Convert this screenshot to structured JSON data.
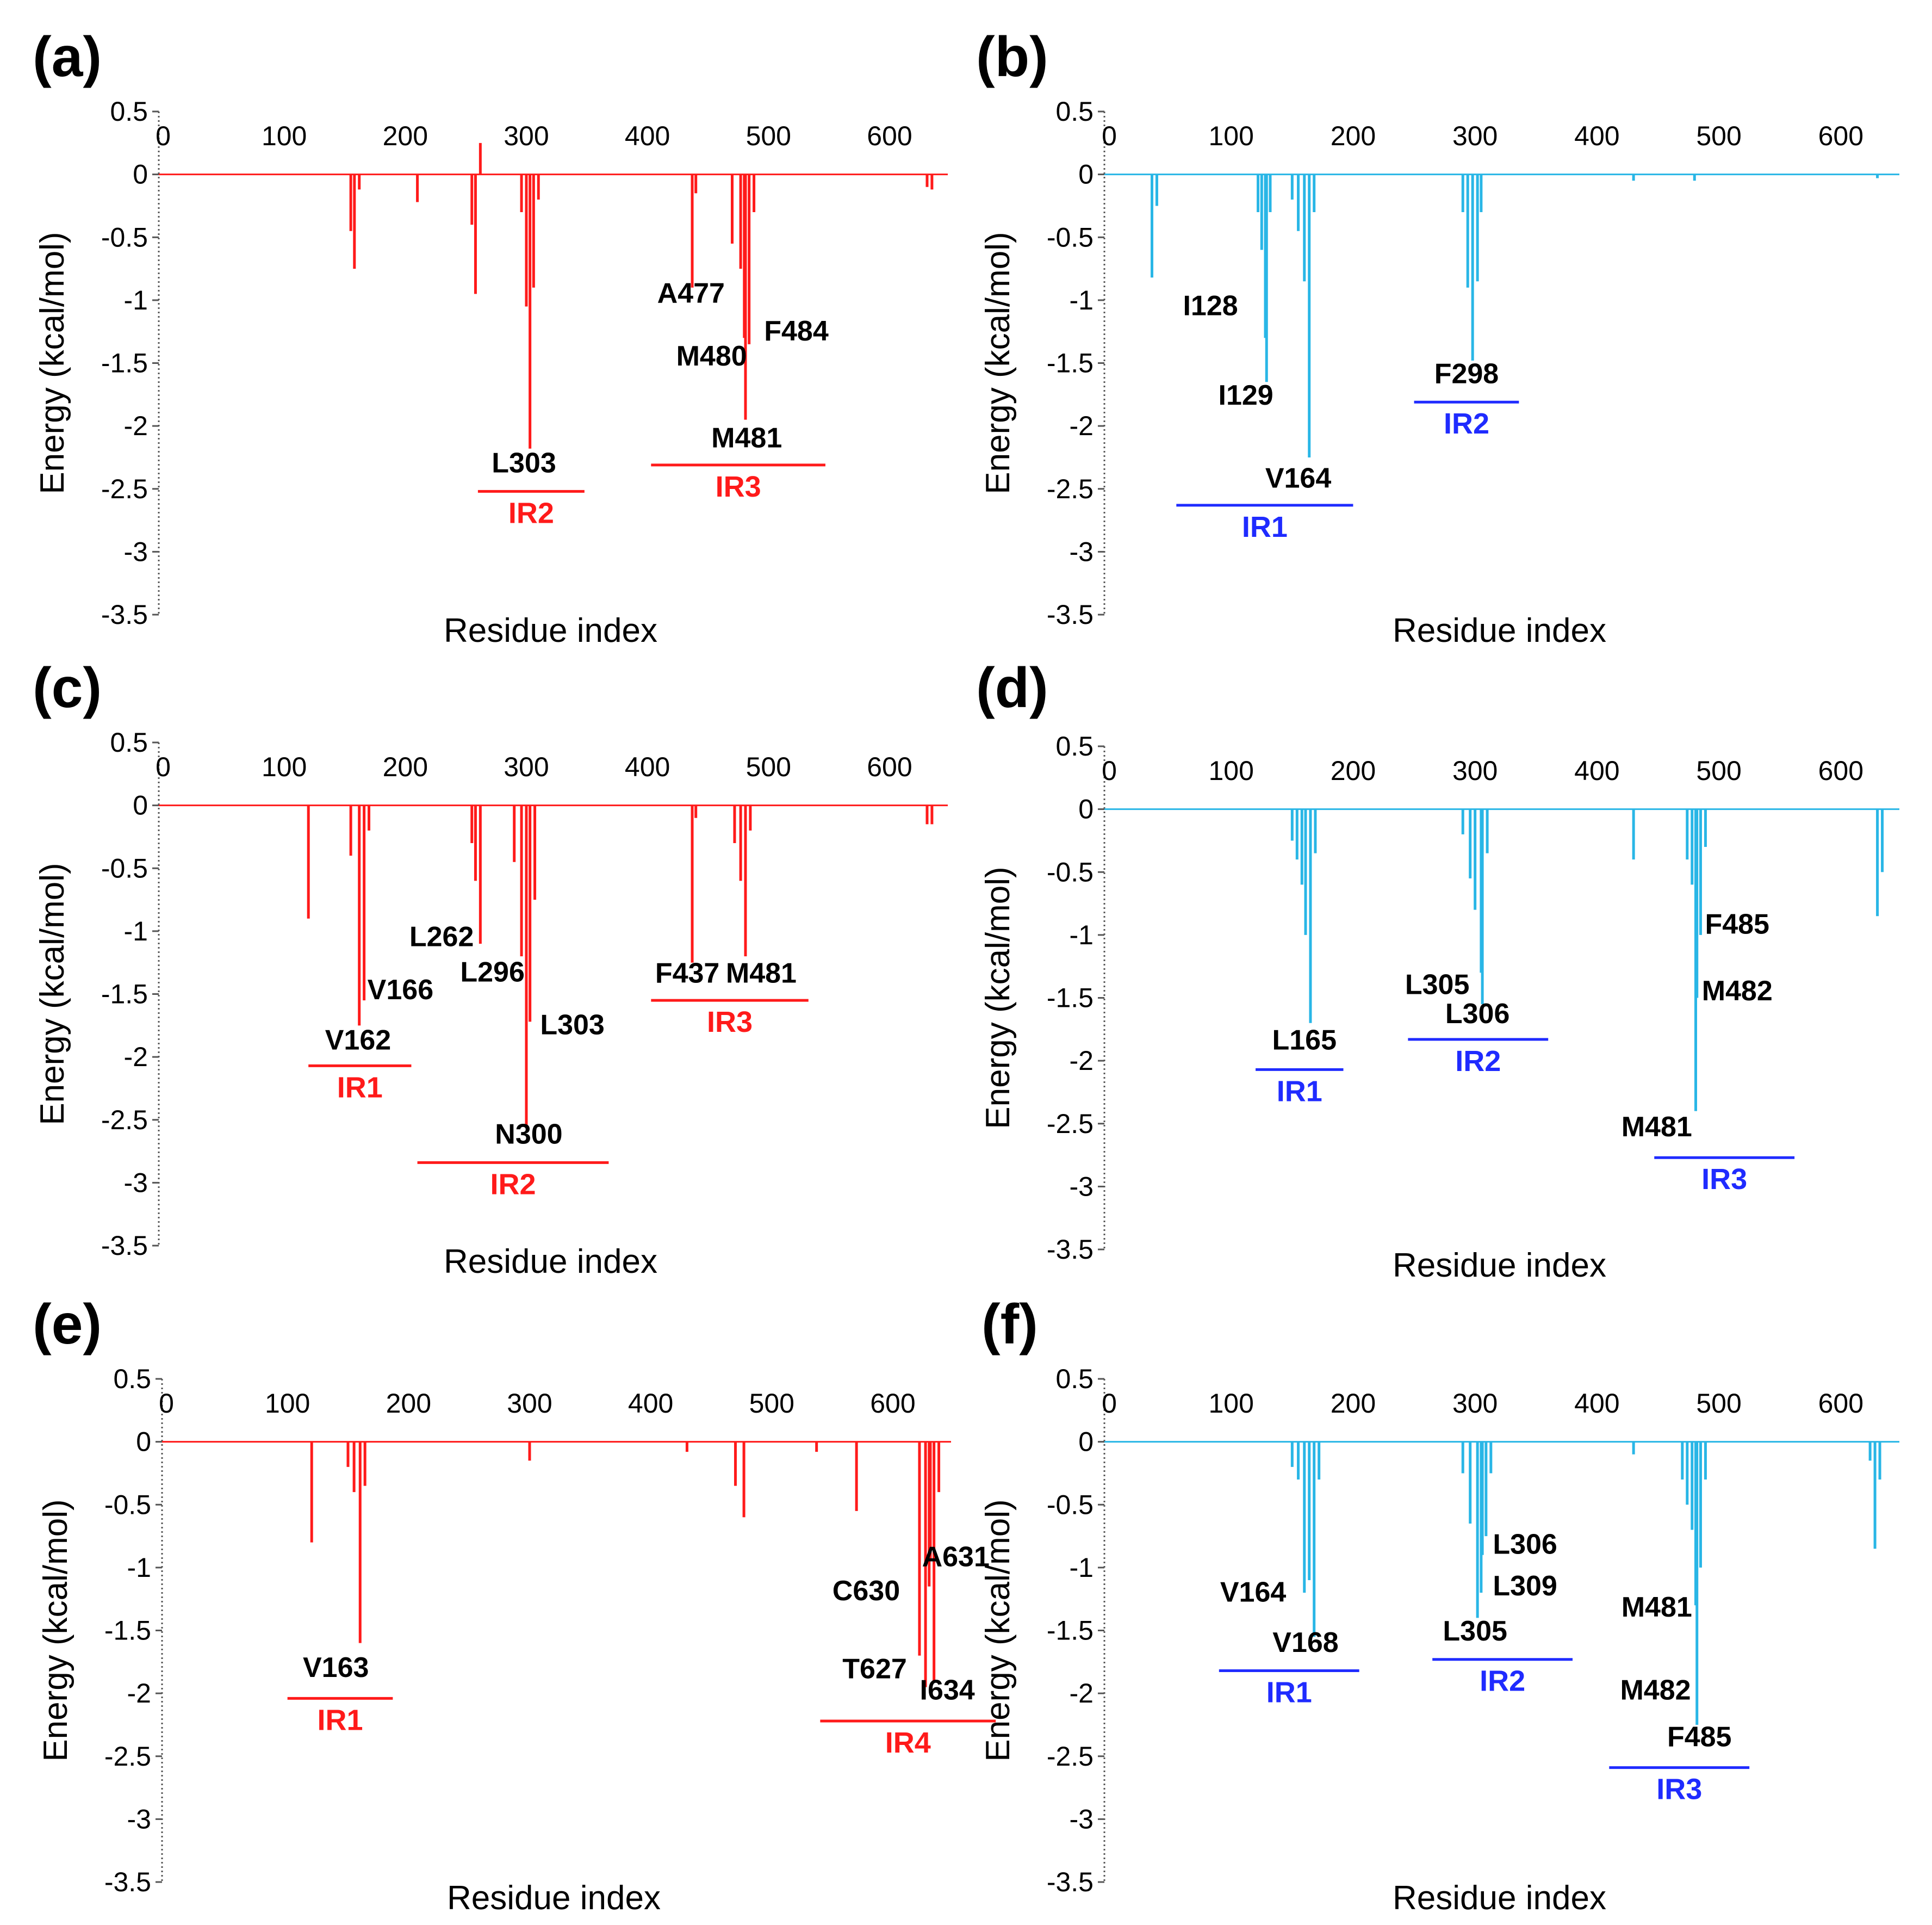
{
  "colors": {
    "series_red": "#ff1a1a",
    "series_cyan": "#29b6e6",
    "ir_red": "#ff1a1a",
    "ir_blue": "#1f2bff",
    "label": "#000000"
  },
  "chart_data": [
    {
      "panel": "(a)",
      "type": "bar",
      "color": "series_red",
      "xlabel": "Residue index",
      "ylabel": "Energy (kcal/mol)",
      "xlim": [
        0,
        640
      ],
      "ylim": [
        -3.5,
        0.5
      ],
      "xticks": [
        "0",
        "100",
        "200",
        "300",
        "400",
        "500",
        "600"
      ],
      "yticks": [
        "0.5",
        "0",
        "-0.5",
        "-1",
        "-1.5",
        "-2",
        "-2.5",
        "-3",
        "-3.5"
      ],
      "bars": [
        [
          155,
          -0.45
        ],
        [
          158,
          -0.75
        ],
        [
          162,
          -0.12
        ],
        [
          210,
          -0.22
        ],
        [
          255,
          -0.4
        ],
        [
          258,
          -0.95
        ],
        [
          262,
          0.25
        ],
        [
          296,
          -0.3
        ],
        [
          300,
          -1.05
        ],
        [
          303,
          -2.18
        ],
        [
          306,
          -0.9
        ],
        [
          310,
          -0.2
        ],
        [
          437,
          -0.9
        ],
        [
          440,
          -0.15
        ],
        [
          470,
          -0.55
        ],
        [
          477,
          -0.75
        ],
        [
          480,
          -1.3
        ],
        [
          481,
          -1.95
        ],
        [
          484,
          -1.35
        ],
        [
          488,
          -0.3
        ],
        [
          631,
          -0.1
        ],
        [
          635,
          -0.12
        ]
      ],
      "residue_labels": [
        {
          "text": "A477",
          "x": 436,
          "y": -1.02
        },
        {
          "text": "F484",
          "x": 523,
          "y": -1.32
        },
        {
          "text": "M480",
          "x": 453,
          "y": -1.52
        },
        {
          "text": "M481",
          "x": 482,
          "y": -2.17
        },
        {
          "text": "L303",
          "x": 298,
          "y": -2.37
        }
      ],
      "regions": [
        {
          "name": "IR2",
          "x0": 260,
          "x1": 348,
          "y": -2.52
        },
        {
          "name": "IR3",
          "x0": 403,
          "x1": 547,
          "y": -2.31
        }
      ]
    },
    {
      "panel": "(b)",
      "type": "bar",
      "color": "series_cyan",
      "xlabel": "Residue index",
      "ylabel": "Energy (kcal/mol)",
      "xlim": [
        0,
        640
      ],
      "ylim": [
        -3.5,
        0.5
      ],
      "xticks": [
        "0",
        "100",
        "200",
        "300",
        "400",
        "500",
        "600"
      ],
      "yticks": [
        "0.5",
        "0",
        "-0.5",
        "-1",
        "-1.5",
        "-2",
        "-2.5",
        "-3",
        "-3.5"
      ],
      "bars": [
        [
          35,
          -0.82
        ],
        [
          39,
          -0.25
        ],
        [
          122,
          -0.3
        ],
        [
          125,
          -0.6
        ],
        [
          128,
          -1.3
        ],
        [
          129,
          -1.65
        ],
        [
          132,
          -0.3
        ],
        [
          150,
          -0.2
        ],
        [
          155,
          -0.45
        ],
        [
          160,
          -0.85
        ],
        [
          164,
          -2.25
        ],
        [
          168,
          -0.3
        ],
        [
          290,
          -0.3
        ],
        [
          294,
          -0.9
        ],
        [
          298,
          -1.48
        ],
        [
          302,
          -0.85
        ],
        [
          305,
          -0.3
        ],
        [
          430,
          -0.05
        ],
        [
          480,
          -0.05
        ],
        [
          630,
          -0.03
        ]
      ],
      "residue_labels": [
        {
          "text": "I128",
          "x": 83,
          "y": -1.12
        },
        {
          "text": "I129",
          "x": 112,
          "y": -1.83
        },
        {
          "text": "F298",
          "x": 293,
          "y": -1.66
        },
        {
          "text": "V164",
          "x": 155,
          "y": -2.49
        }
      ],
      "regions": [
        {
          "name": "IR1",
          "x0": 55,
          "x1": 200,
          "y": -2.63
        },
        {
          "name": "IR2",
          "x0": 250,
          "x1": 336,
          "y": -1.81
        }
      ]
    },
    {
      "panel": "(c)",
      "type": "bar",
      "color": "series_red",
      "xlabel": "Residue index",
      "ylabel": "Energy (kcal/mol)",
      "xlim": [
        0,
        640
      ],
      "ylim": [
        -3.5,
        0.5
      ],
      "xticks": [
        "0",
        "100",
        "200",
        "300",
        "400",
        "500",
        "600"
      ],
      "yticks": [
        "0.5",
        "0",
        "-0.5",
        "-1",
        "-1.5",
        "-2",
        "-2.5",
        "-3",
        "-3.5"
      ],
      "bars": [
        [
          120,
          -0.9
        ],
        [
          155,
          -0.4
        ],
        [
          162,
          -1.75
        ],
        [
          166,
          -1.55
        ],
        [
          170,
          -0.2
        ],
        [
          255,
          -0.3
        ],
        [
          258,
          -0.6
        ],
        [
          262,
          -1.1
        ],
        [
          290,
          -0.45
        ],
        [
          296,
          -1.2
        ],
        [
          300,
          -2.55
        ],
        [
          303,
          -1.72
        ],
        [
          307,
          -0.75
        ],
        [
          437,
          -1.25
        ],
        [
          440,
          -0.1
        ],
        [
          472,
          -0.3
        ],
        [
          477,
          -0.6
        ],
        [
          481,
          -1.2
        ],
        [
          485,
          -0.2
        ],
        [
          631,
          -0.15
        ],
        [
          635,
          -0.15
        ]
      ],
      "residue_labels": [
        {
          "text": "L262",
          "x": 230,
          "y": -1.12
        },
        {
          "text": "L296",
          "x": 272,
          "y": -1.4
        },
        {
          "text": "V166",
          "x": 196,
          "y": -1.54
        },
        {
          "text": "F437",
          "x": 433,
          "y": -1.41
        },
        {
          "text": "M481",
          "x": 494,
          "y": -1.41
        },
        {
          "text": "L303",
          "x": 338,
          "y": -1.82
        },
        {
          "text": "V162",
          "x": 161,
          "y": -1.94
        },
        {
          "text": "N300",
          "x": 302,
          "y": -2.69
        }
      ],
      "regions": [
        {
          "name": "IR1",
          "x0": 120,
          "x1": 205,
          "y": -2.07
        },
        {
          "name": "IR2",
          "x0": 210,
          "x1": 368,
          "y": -2.84
        },
        {
          "name": "IR3",
          "x0": 403,
          "x1": 533,
          "y": -1.55
        }
      ]
    },
    {
      "panel": "(d)",
      "type": "bar",
      "color": "series_cyan",
      "xlabel": "Residue index",
      "ylabel": "Energy (kcal/mol)",
      "xlim": [
        0,
        640
      ],
      "ylim": [
        -3.5,
        0.5
      ],
      "xticks": [
        "0",
        "100",
        "200",
        "300",
        "400",
        "500",
        "600"
      ],
      "yticks": [
        "0.5",
        "0",
        "-0.5",
        "-1",
        "-1.5",
        "-2",
        "-2.5",
        "-3",
        "-3.5"
      ],
      "bars": [
        [
          150,
          -0.25
        ],
        [
          154,
          -0.4
        ],
        [
          158,
          -0.6
        ],
        [
          161,
          -1.0
        ],
        [
          165,
          -1.7
        ],
        [
          169,
          -0.35
        ],
        [
          290,
          -0.2
        ],
        [
          296,
          -0.55
        ],
        [
          300,
          -0.8
        ],
        [
          305,
          -1.3
        ],
        [
          306,
          -1.55
        ],
        [
          310,
          -0.35
        ],
        [
          430,
          -0.4
        ],
        [
          474,
          -0.4
        ],
        [
          478,
          -0.6
        ],
        [
          481,
          -2.4
        ],
        [
          482,
          -1.5
        ],
        [
          485,
          -1.0
        ],
        [
          489,
          -0.3
        ],
        [
          630,
          -0.85
        ],
        [
          634,
          -0.5
        ]
      ],
      "residue_labels": [
        {
          "text": "F485",
          "x": 515,
          "y": -0.99
        },
        {
          "text": "M482",
          "x": 515,
          "y": -1.52
        },
        {
          "text": "L305",
          "x": 269,
          "y": -1.47
        },
        {
          "text": "L306",
          "x": 302,
          "y": -1.7
        },
        {
          "text": "L165",
          "x": 160,
          "y": -1.91
        },
        {
          "text": "M481",
          "x": 449,
          "y": -2.6
        }
      ],
      "regions": [
        {
          "name": "IR1",
          "x0": 120,
          "x1": 192,
          "y": -2.07
        },
        {
          "name": "IR2",
          "x0": 245,
          "x1": 360,
          "y": -1.83
        },
        {
          "name": "IR3",
          "x0": 447,
          "x1": 562,
          "y": -2.77
        }
      ]
    },
    {
      "panel": "(e)",
      "type": "bar",
      "color": "series_red",
      "xlabel": "Residue index",
      "ylabel": "Energy (kcal/mol)",
      "xlim": [
        0,
        640
      ],
      "ylim": [
        -3.5,
        0.5
      ],
      "xticks": [
        "0",
        "100",
        "200",
        "300",
        "400",
        "500",
        "600"
      ],
      "yticks": [
        "0.5",
        "0",
        "-0.5",
        "-1",
        "-1.5",
        "-2",
        "-2.5",
        "-3",
        "-3.5"
      ],
      "bars": [
        [
          120,
          -0.8
        ],
        [
          150,
          -0.2
        ],
        [
          155,
          -0.4
        ],
        [
          160,
          -1.6
        ],
        [
          164,
          -0.35
        ],
        [
          300,
          -0.15
        ],
        [
          430,
          -0.08
        ],
        [
          470,
          -0.35
        ],
        [
          477,
          -0.6
        ],
        [
          537,
          -0.08
        ],
        [
          570,
          -0.55
        ],
        [
          622,
          -1.7
        ],
        [
          627,
          -1.95
        ],
        [
          630,
          -1.15
        ],
        [
          631,
          -0.95
        ],
        [
          634,
          -1.9
        ],
        [
          638,
          -0.4
        ]
      ],
      "residue_labels": [
        {
          "text": "A631",
          "x": 652,
          "y": -0.99
        },
        {
          "text": "C630",
          "x": 578,
          "y": -1.26
        },
        {
          "text": "T627",
          "x": 585,
          "y": -1.88
        },
        {
          "text": "I634",
          "x": 645,
          "y": -2.05
        },
        {
          "text": "V163",
          "x": 140,
          "y": -1.87
        }
      ],
      "regions": [
        {
          "name": "IR1",
          "x0": 100,
          "x1": 187,
          "y": -2.04
        },
        {
          "name": "IR4",
          "x0": 540,
          "x1": 685,
          "y": -2.22
        }
      ]
    },
    {
      "panel": "(f)",
      "type": "bar",
      "color": "series_cyan",
      "xlabel": "Residue index",
      "ylabel": "Energy (kcal/mol)",
      "xlim": [
        0,
        640
      ],
      "ylim": [
        -3.5,
        0.5
      ],
      "xticks": [
        "0",
        "100",
        "200",
        "300",
        "400",
        "500",
        "600"
      ],
      "yticks": [
        "0.5",
        "0",
        "-0.5",
        "-1",
        "-1.5",
        "-2",
        "-2.5",
        "-3",
        "-3.5"
      ],
      "bars": [
        [
          150,
          -0.2
        ],
        [
          155,
          -0.3
        ],
        [
          160,
          -1.2
        ],
        [
          164,
          -1.1
        ],
        [
          168,
          -1.55
        ],
        [
          172,
          -0.3
        ],
        [
          290,
          -0.25
        ],
        [
          296,
          -0.65
        ],
        [
          302,
          -1.4
        ],
        [
          305,
          -1.2
        ],
        [
          306,
          -0.9
        ],
        [
          309,
          -0.75
        ],
        [
          313,
          -0.25
        ],
        [
          430,
          -0.1
        ],
        [
          470,
          -0.3
        ],
        [
          474,
          -0.5
        ],
        [
          478,
          -0.7
        ],
        [
          481,
          -1.3
        ],
        [
          482,
          -2.25
        ],
        [
          485,
          -1.0
        ],
        [
          489,
          -0.3
        ],
        [
          624,
          -0.15
        ],
        [
          628,
          -0.85
        ],
        [
          632,
          -0.3
        ]
      ],
      "residue_labels": [
        {
          "text": "L306",
          "x": 341,
          "y": -0.89
        },
        {
          "text": "L309",
          "x": 341,
          "y": -1.22
        },
        {
          "text": "V164",
          "x": 118,
          "y": -1.27
        },
        {
          "text": "M481",
          "x": 449,
          "y": -1.39
        },
        {
          "text": "V168",
          "x": 161,
          "y": -1.67
        },
        {
          "text": "L305",
          "x": 300,
          "y": -1.58
        },
        {
          "text": "M482",
          "x": 448,
          "y": -2.05
        },
        {
          "text": "F485",
          "x": 484,
          "y": -2.42
        }
      ],
      "regions": [
        {
          "name": "IR1",
          "x0": 90,
          "x1": 205,
          "y": -1.82
        },
        {
          "name": "IR2",
          "x0": 265,
          "x1": 380,
          "y": -1.73
        },
        {
          "name": "IR3",
          "x0": 410,
          "x1": 525,
          "y": -2.59
        }
      ]
    }
  ]
}
